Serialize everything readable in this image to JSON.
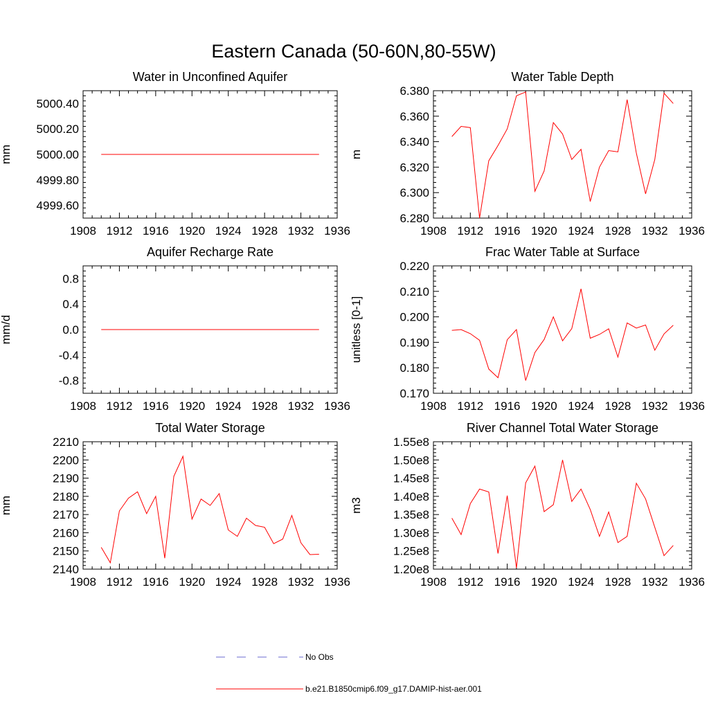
{
  "figure": {
    "title": "Eastern Canada (50-60N,80-55W)",
    "line_color": "#ff0000",
    "obs_color": "#6a6ad0"
  },
  "legend": {
    "items": [
      {
        "label": "No Obs",
        "style": "dashed",
        "color": "#6a6ad0"
      },
      {
        "label": "b.e21.B1850cmip6.f09_g17.DAMIP-hist-aer.001",
        "style": "solid",
        "color": "#ff0000"
      }
    ]
  },
  "chart_data": [
    {
      "type": "line",
      "title": "Water in Unconfined Aquifer",
      "ylabel": "mm",
      "xlim": [
        1908,
        1936
      ],
      "ylim": [
        4999.5,
        5000.5
      ],
      "xticks": [
        1908,
        1912,
        1916,
        1920,
        1924,
        1928,
        1932,
        1936
      ],
      "yticks": [
        4999.6,
        4999.8,
        5000.0,
        5000.2,
        5000.4
      ],
      "yticklabels": [
        "4999.60",
        "4999.80",
        "5000.00",
        "5000.20",
        "5000.40"
      ],
      "grid": false,
      "x": [
        1910,
        1911,
        1912,
        1913,
        1914,
        1915,
        1916,
        1917,
        1918,
        1919,
        1920,
        1921,
        1922,
        1923,
        1924,
        1925,
        1926,
        1927,
        1928,
        1929,
        1930,
        1931,
        1932,
        1933,
        1934
      ],
      "series": [
        {
          "values": [
            5000,
            5000,
            5000,
            5000,
            5000,
            5000,
            5000,
            5000,
            5000,
            5000,
            5000,
            5000,
            5000,
            5000,
            5000,
            5000,
            5000,
            5000,
            5000,
            5000,
            5000,
            5000,
            5000,
            5000,
            5000
          ]
        }
      ]
    },
    {
      "type": "line",
      "title": "Water Table Depth",
      "ylabel": "m",
      "xlim": [
        1908,
        1936
      ],
      "ylim": [
        6.28,
        6.38
      ],
      "xticks": [
        1908,
        1912,
        1916,
        1920,
        1924,
        1928,
        1932,
        1936
      ],
      "yticks": [
        6.28,
        6.3,
        6.32,
        6.34,
        6.36,
        6.38
      ],
      "yticklabels": [
        "6.280",
        "6.300",
        "6.320",
        "6.340",
        "6.360",
        "6.380"
      ],
      "grid": false,
      "x": [
        1910,
        1911,
        1912,
        1913,
        1914,
        1915,
        1916,
        1917,
        1918,
        1919,
        1920,
        1921,
        1922,
        1923,
        1924,
        1925,
        1926,
        1927,
        1928,
        1929,
        1930,
        1931,
        1932,
        1933,
        1934
      ],
      "series": [
        {
          "values": [
            6.344,
            6.352,
            6.351,
            6.28,
            6.325,
            6.337,
            6.35,
            6.376,
            6.379,
            6.301,
            6.317,
            6.355,
            6.346,
            6.326,
            6.334,
            6.293,
            6.32,
            6.333,
            6.332,
            6.373,
            6.331,
            6.299,
            6.326,
            6.378,
            6.37
          ]
        }
      ]
    },
    {
      "type": "line",
      "title": "Aquifer Recharge Rate",
      "ylabel": "mm/d",
      "xlim": [
        1908,
        1936
      ],
      "ylim": [
        -1.0,
        1.0
      ],
      "xticks": [
        1908,
        1912,
        1916,
        1920,
        1924,
        1928,
        1932,
        1936
      ],
      "yticks": [
        -0.8,
        -0.4,
        0.0,
        0.4,
        0.8
      ],
      "yticklabels": [
        "-0.8",
        "-0.4",
        "0.0",
        "0.4",
        "0.8"
      ],
      "grid": false,
      "x": [
        1910,
        1911,
        1912,
        1913,
        1914,
        1915,
        1916,
        1917,
        1918,
        1919,
        1920,
        1921,
        1922,
        1923,
        1924,
        1925,
        1926,
        1927,
        1928,
        1929,
        1930,
        1931,
        1932,
        1933,
        1934
      ],
      "series": [
        {
          "values": [
            0,
            0,
            0,
            0,
            0,
            0,
            0,
            0,
            0,
            0,
            0,
            0,
            0,
            0,
            0,
            0,
            0,
            0,
            0,
            0,
            0,
            0,
            0,
            0,
            0
          ]
        }
      ]
    },
    {
      "type": "line",
      "title": "Frac Water Table at Surface",
      "ylabel": "unitless [0-1]",
      "xlim": [
        1908,
        1936
      ],
      "ylim": [
        0.17,
        0.22
      ],
      "xticks": [
        1908,
        1912,
        1916,
        1920,
        1924,
        1928,
        1932,
        1936
      ],
      "yticks": [
        0.17,
        0.18,
        0.19,
        0.2,
        0.21,
        0.22
      ],
      "yticklabels": [
        "0.170",
        "0.180",
        "0.190",
        "0.200",
        "0.210",
        "0.220"
      ],
      "grid": false,
      "x": [
        1910,
        1911,
        1912,
        1913,
        1914,
        1915,
        1916,
        1917,
        1918,
        1919,
        1920,
        1921,
        1922,
        1923,
        1924,
        1925,
        1926,
        1927,
        1928,
        1929,
        1930,
        1931,
        1932,
        1933,
        1934
      ],
      "series": [
        {
          "values": [
            0.1947,
            0.195,
            0.1934,
            0.1908,
            0.1795,
            0.1761,
            0.191,
            0.195,
            0.175,
            0.186,
            0.1911,
            0.2,
            0.1906,
            0.1954,
            0.211,
            0.1916,
            0.1931,
            0.1953,
            0.1842,
            0.1976,
            0.1956,
            0.1968,
            0.1869,
            0.1933,
            0.1967
          ]
        }
      ]
    },
    {
      "type": "line",
      "title": "Total Water Storage",
      "ylabel": "mm",
      "xlim": [
        1908,
        1936
      ],
      "ylim": [
        2140,
        2210
      ],
      "xticks": [
        1908,
        1912,
        1916,
        1920,
        1924,
        1928,
        1932,
        1936
      ],
      "yticks": [
        2140,
        2150,
        2160,
        2170,
        2180,
        2190,
        2200,
        2210
      ],
      "yticklabels": [
        "2140",
        "2150",
        "2160",
        "2170",
        "2180",
        "2190",
        "2200",
        "2210"
      ],
      "grid": false,
      "x": [
        1910,
        1911,
        1912,
        1913,
        1914,
        1915,
        1916,
        1917,
        1918,
        1919,
        1920,
        1921,
        1922,
        1923,
        1924,
        1925,
        1926,
        1927,
        1928,
        1929,
        1930,
        1931,
        1932,
        1933,
        1934
      ],
      "series": [
        {
          "values": [
            2152,
            2143.5,
            2172,
            2179,
            2182.5,
            2170.5,
            2180,
            2146,
            2191,
            2202,
            2167.5,
            2178.5,
            2175,
            2181.5,
            2161.5,
            2158,
            2168,
            2164,
            2163,
            2154,
            2156.5,
            2169.5,
            2154.5,
            2148,
            2148.2
          ]
        }
      ]
    },
    {
      "type": "line",
      "title": "River Channel Total Water Storage",
      "ylabel": "m3",
      "xlim": [
        1908,
        1936
      ],
      "ylim": [
        120000000.0,
        155000000.0
      ],
      "xticks": [
        1908,
        1912,
        1916,
        1920,
        1924,
        1928,
        1932,
        1936
      ],
      "yticks": [
        120000000.0,
        125000000.0,
        130000000.0,
        135000000.0,
        140000000.0,
        145000000.0,
        150000000.0,
        155000000.0
      ],
      "yticklabels": [
        "1.20e8",
        "1.25e8",
        "1.30e8",
        "1.35e8",
        "1.40e8",
        "1.45e8",
        "1.50e8",
        "1.55e8"
      ],
      "grid": false,
      "x": [
        1910,
        1911,
        1912,
        1913,
        1914,
        1915,
        1916,
        1917,
        1918,
        1919,
        1920,
        1921,
        1922,
        1923,
        1924,
        1925,
        1926,
        1927,
        1928,
        1929,
        1930,
        1931,
        1932,
        1933,
        1934
      ],
      "series": [
        {
          "values": [
            134000000.0,
            129500000.0,
            138000000.0,
            142000000.0,
            141200000.0,
            124300000.0,
            140200000.0,
            120300000.0,
            143700000.0,
            148300000.0,
            135800000.0,
            137700000.0,
            150000000.0,
            138600000.0,
            142000000.0,
            136400000.0,
            129000000.0,
            135700000.0,
            127300000.0,
            129000000.0,
            143600000.0,
            139300000.0,
            131500000.0,
            123700000.0,
            126500000.0
          ]
        }
      ]
    }
  ]
}
